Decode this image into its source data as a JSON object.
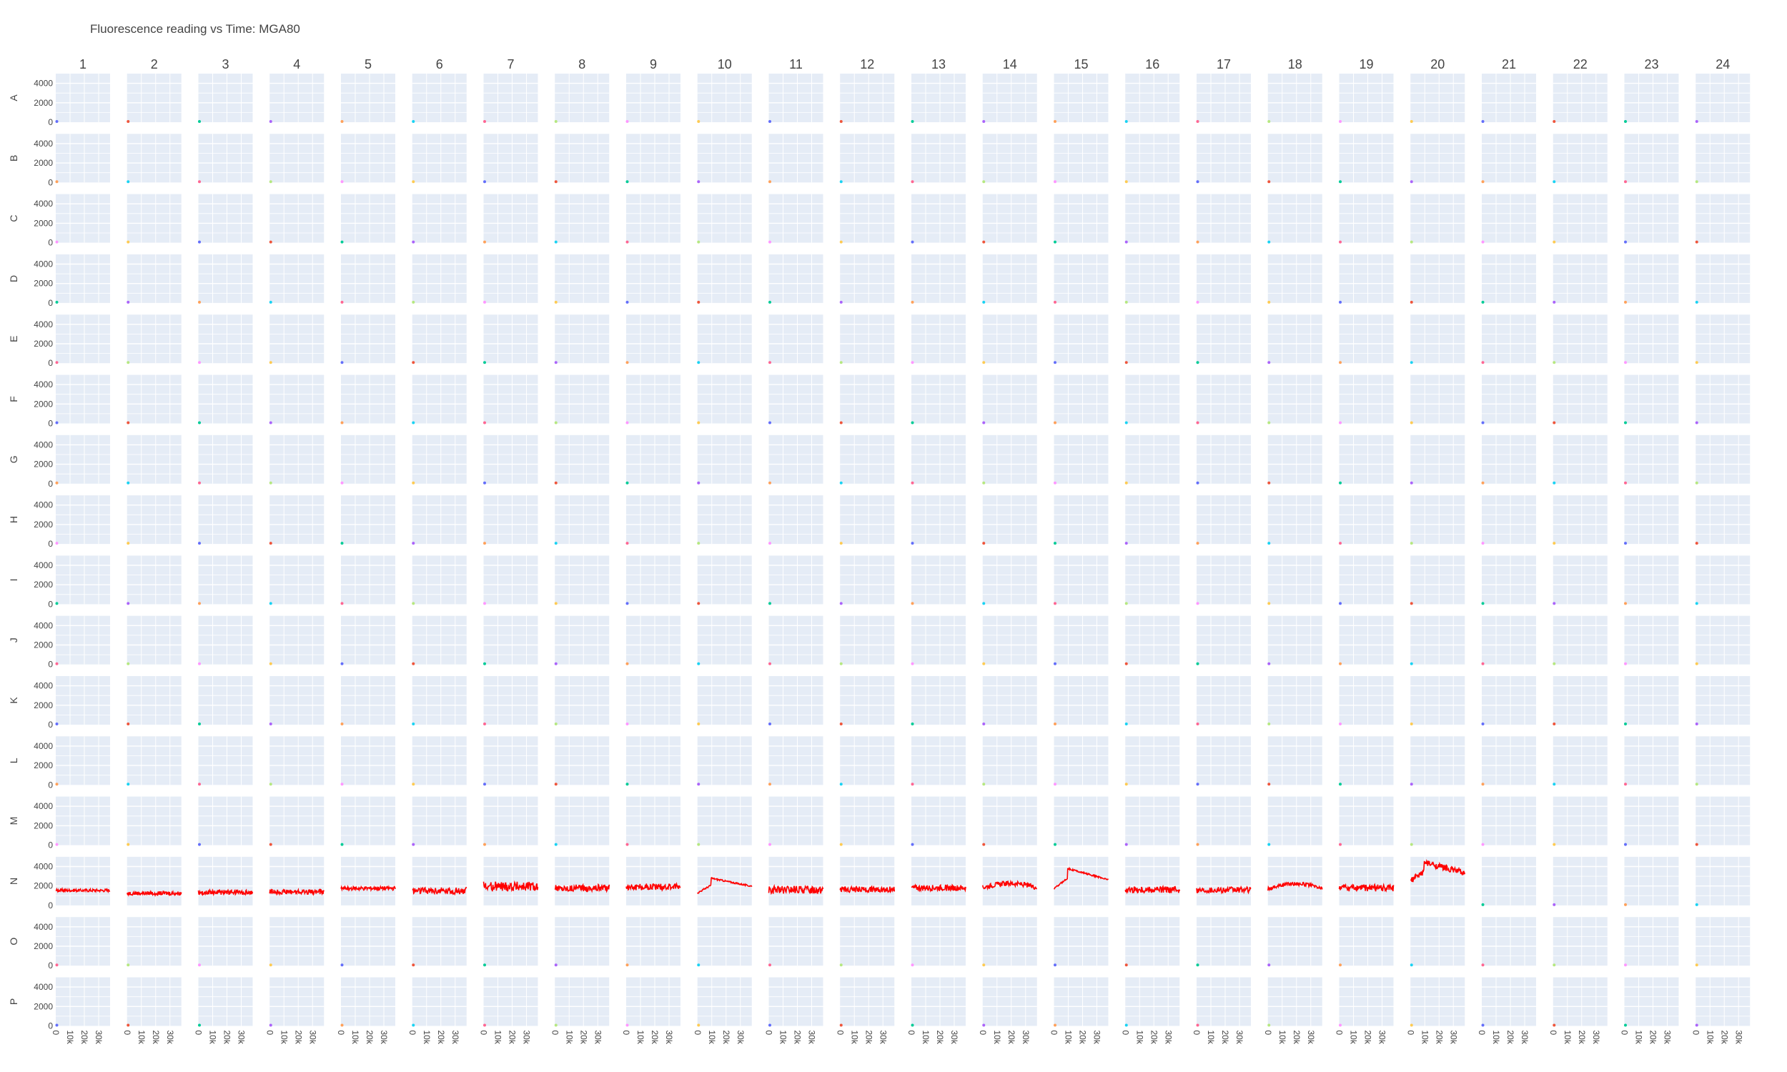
{
  "title": "Fluorescence reading vs Time: MGA80",
  "chart_data": {
    "type": "line",
    "title": "Fluorescence reading vs Time: MGA80",
    "columns": [
      "1",
      "2",
      "3",
      "4",
      "5",
      "6",
      "7",
      "8",
      "9",
      "10",
      "11",
      "12",
      "13",
      "14",
      "15",
      "16",
      "17",
      "18",
      "19",
      "20",
      "21",
      "22",
      "23",
      "24"
    ],
    "rows": [
      "A",
      "B",
      "C",
      "D",
      "E",
      "F",
      "G",
      "H",
      "I",
      "J",
      "K",
      "L",
      "M",
      "N",
      "O",
      "P"
    ],
    "ylim": [
      0,
      5000
    ],
    "yticks": [
      "4000",
      "2000",
      "0"
    ],
    "ytick_values": [
      4000,
      2000,
      0
    ],
    "xlim": [
      0,
      38000
    ],
    "xticks": [
      "0",
      "10k",
      "20k",
      "30k"
    ],
    "xtick_values": [
      0,
      10000,
      20000,
      30000
    ],
    "grid": true,
    "marker_palette": [
      "#636efa",
      "#EF553B",
      "#00cc96",
      "#ab63fa",
      "#FFA15A",
      "#19d3f3",
      "#FF6692",
      "#B6E880",
      "#FF97FF",
      "#FECB52"
    ],
    "series_color": "#ff0000",
    "series": [
      {
        "row": "N",
        "col": "1",
        "shape": "flat",
        "base": 1550,
        "noise": 150,
        "amp": 0
      },
      {
        "row": "N",
        "col": "2",
        "shape": "flat",
        "base": 1250,
        "noise": 200,
        "amp": 0
      },
      {
        "row": "N",
        "col": "3",
        "shape": "flat",
        "base": 1350,
        "noise": 250,
        "amp": 0
      },
      {
        "row": "N",
        "col": "4",
        "shape": "flat",
        "base": 1400,
        "noise": 250,
        "amp": 0
      },
      {
        "row": "N",
        "col": "5",
        "shape": "flat",
        "base": 1750,
        "noise": 200,
        "amp": 0
      },
      {
        "row": "N",
        "col": "6",
        "shape": "flat",
        "base": 1500,
        "noise": 350,
        "amp": 0
      },
      {
        "row": "N",
        "col": "7",
        "shape": "flat",
        "base": 1950,
        "noise": 500,
        "amp": 0
      },
      {
        "row": "N",
        "col": "8",
        "shape": "flat",
        "base": 1800,
        "noise": 350,
        "amp": 0
      },
      {
        "row": "N",
        "col": "9",
        "shape": "flat",
        "base": 1900,
        "noise": 350,
        "amp": 0
      },
      {
        "row": "N",
        "col": "10",
        "shape": "peak",
        "base": 2000,
        "noise": 80,
        "amp": 800
      },
      {
        "row": "N",
        "col": "11",
        "shape": "flat",
        "base": 1600,
        "noise": 400,
        "amp": 0
      },
      {
        "row": "N",
        "col": "12",
        "shape": "flat",
        "base": 1650,
        "noise": 300,
        "amp": 0
      },
      {
        "row": "N",
        "col": "13",
        "shape": "flat",
        "base": 1800,
        "noise": 300,
        "amp": 0
      },
      {
        "row": "N",
        "col": "14",
        "shape": "hump",
        "base": 1850,
        "noise": 250,
        "amp": 400
      },
      {
        "row": "N",
        "col": "15",
        "shape": "peak",
        "base": 2700,
        "noise": 80,
        "amp": 1100
      },
      {
        "row": "N",
        "col": "16",
        "shape": "flat",
        "base": 1600,
        "noise": 350,
        "amp": 0
      },
      {
        "row": "N",
        "col": "17",
        "shape": "flat",
        "base": 1600,
        "noise": 300,
        "amp": 0
      },
      {
        "row": "N",
        "col": "18",
        "shape": "hump",
        "base": 1700,
        "noise": 200,
        "amp": 550
      },
      {
        "row": "N",
        "col": "19",
        "shape": "flat",
        "base": 1800,
        "noise": 350,
        "amp": 0
      },
      {
        "row": "N",
        "col": "20",
        "shape": "peak",
        "base": 3400,
        "noise": 300,
        "amp": 1000
      }
    ]
  }
}
